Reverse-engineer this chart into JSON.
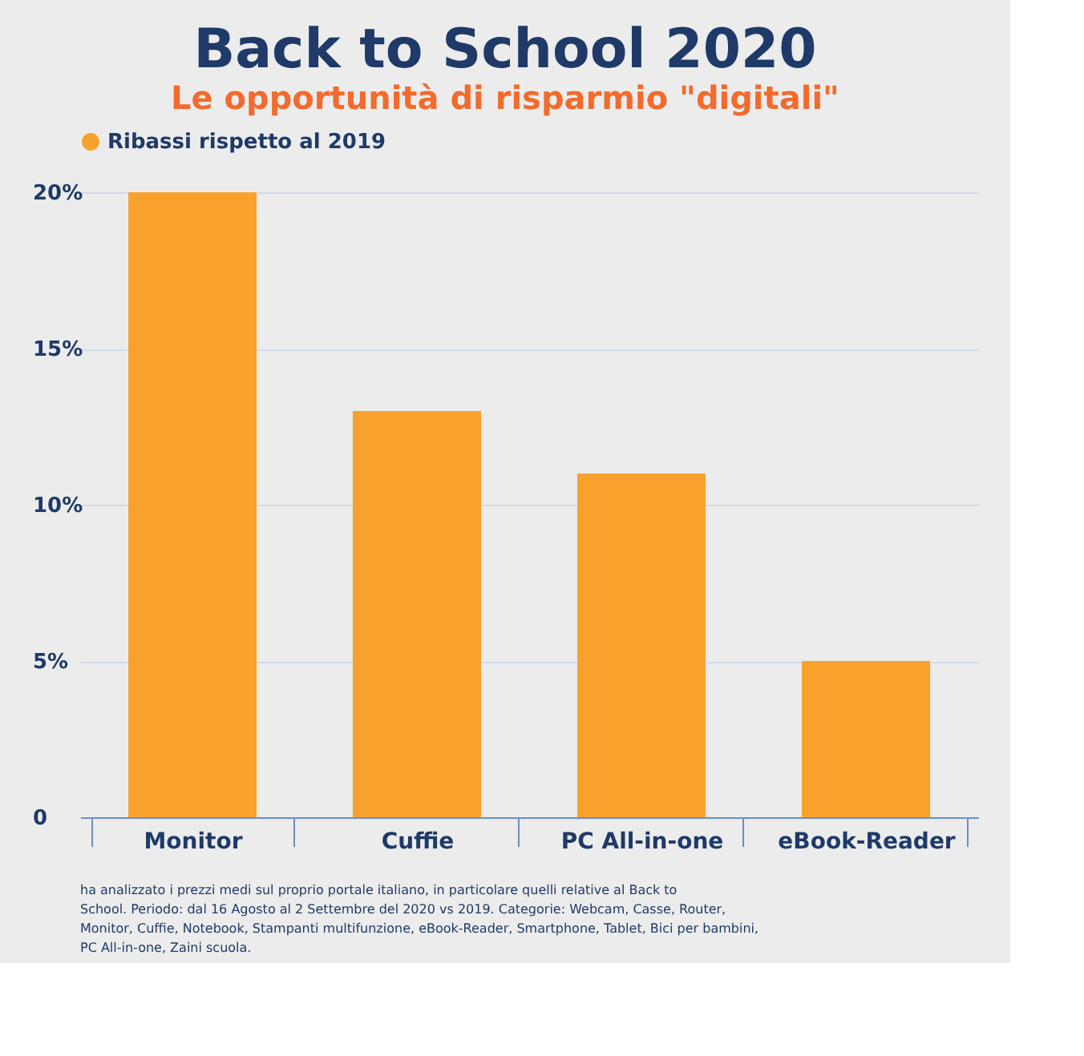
{
  "chart_data": {
    "type": "bar",
    "title": "Back to School 2020",
    "subtitle": "Le opportunità di risparmio \"digitali\"",
    "categories": [
      "Monitor",
      "Cuffie",
      "PC All-in-one",
      "eBook-Reader"
    ],
    "series": [
      {
        "name": "Ribassi rispetto al 2019",
        "color": "#f9a12d",
        "values": [
          20,
          13,
          11,
          5
        ]
      }
    ],
    "ylim": [
      0,
      20
    ],
    "yticks": [
      0,
      {
        "value": 5,
        "label": "5%"
      },
      {
        "value": 10,
        "label": "10%"
      },
      {
        "value": 15,
        "label": "15%"
      },
      {
        "value": 20,
        "label": "20%"
      }
    ],
    "grid": "y",
    "legend": "top",
    "annotations": [
      "ha analizzato i prezzi medi sul proprio portale italiano, in particolare quelli relative al Back to School. Periodo: dal 16 Agosto al 2 Settembre del 2020 vs 2019. Categorie: Webcam, Casse, Router, Monitor, Cuffie, Notebook, Stampanti multifunzione, eBook-Reader, Smartphone, Tablet, Bici per bambini, PC All-in-one, Zaini scuola."
    ]
  }
}
